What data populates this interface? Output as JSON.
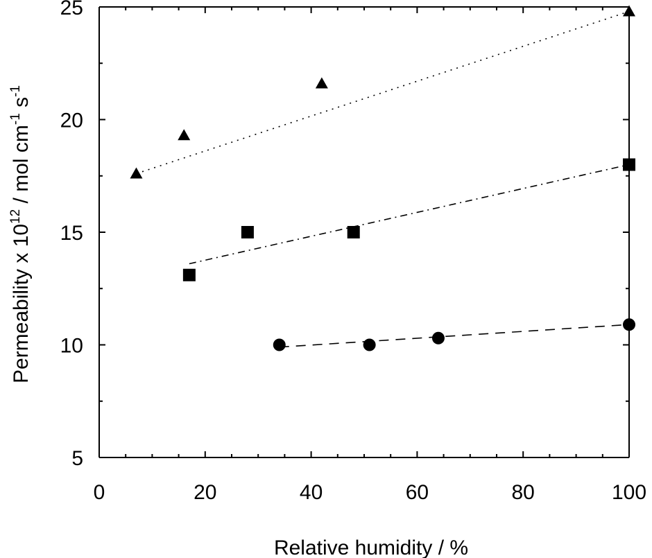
{
  "chart_data": {
    "type": "scatter",
    "xlabel": "Relative humidity  /  %",
    "ylabel_parts": {
      "main": "Permeability x 10",
      "exp": "12",
      "unit_a": " / mol cm",
      "exp_a": "-1",
      "unit_b": " s",
      "exp_b": "-1"
    },
    "xlim": [
      0,
      100
    ],
    "ylim": [
      5,
      25
    ],
    "x_ticks": [
      0,
      20,
      40,
      60,
      80,
      100
    ],
    "y_ticks": [
      5,
      10,
      15,
      20,
      25
    ],
    "x_tick_labels": [
      "0",
      "20",
      "40",
      "60",
      "80",
      "100"
    ],
    "y_tick_labels": [
      "5",
      "10",
      "15",
      "20",
      "25"
    ],
    "grid": false,
    "legend": "none",
    "series": [
      {
        "marker": "triangle",
        "line_style": "dotted",
        "x": [
          7,
          16,
          42,
          100
        ],
        "y": [
          17.6,
          19.3,
          21.6,
          24.8
        ],
        "fit": [
          [
            7,
            17.6
          ],
          [
            100,
            24.8
          ]
        ]
      },
      {
        "marker": "square",
        "line_style": "dash-dot",
        "x": [
          17,
          28,
          48,
          100
        ],
        "y": [
          13.1,
          15.0,
          15.0,
          18.0
        ],
        "fit": [
          [
            17,
            13.6
          ],
          [
            100,
            18.0
          ]
        ]
      },
      {
        "marker": "circle",
        "line_style": "dashed",
        "x": [
          34,
          51,
          64,
          100
        ],
        "y": [
          10.0,
          10.0,
          10.3,
          10.9
        ],
        "fit": [
          [
            34,
            9.9
          ],
          [
            100,
            10.9
          ]
        ]
      }
    ]
  }
}
